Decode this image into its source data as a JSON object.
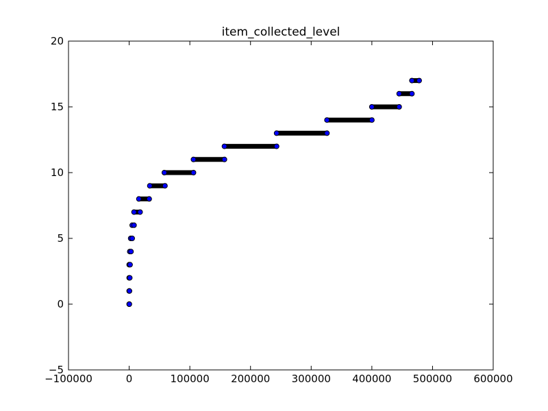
{
  "chart_data": {
    "type": "scatter",
    "title": "item_collected_level",
    "xlabel": "",
    "ylabel": "",
    "xlim": [
      -100000,
      600000
    ],
    "ylim": [
      -5,
      20
    ],
    "x_ticks": [
      -100000,
      0,
      100000,
      200000,
      300000,
      400000,
      500000,
      600000
    ],
    "x_tick_labels": [
      "−100000",
      "0",
      "100000",
      "200000",
      "300000",
      "400000",
      "500000",
      "600000"
    ],
    "y_ticks": [
      -5,
      0,
      5,
      10,
      15,
      20
    ],
    "y_tick_labels": [
      "−5",
      "0",
      "5",
      "10",
      "15",
      "20"
    ],
    "grid": false,
    "legend": "none",
    "marker_fill": "#0000ff",
    "marker_edge": "#000000",
    "level_ranges": [
      {
        "level": 0,
        "x_start": 0,
        "x_end": 300
      },
      {
        "level": 1,
        "x_start": 0,
        "x_end": 500
      },
      {
        "level": 2,
        "x_start": 0,
        "x_end": 1000
      },
      {
        "level": 3,
        "x_start": 0,
        "x_end": 1500
      },
      {
        "level": 4,
        "x_start": 1000,
        "x_end": 3000
      },
      {
        "level": 5,
        "x_start": 2500,
        "x_end": 5000
      },
      {
        "level": 6,
        "x_start": 5000,
        "x_end": 8000
      },
      {
        "level": 7,
        "x_start": 8000,
        "x_end": 18000
      },
      {
        "level": 8,
        "x_start": 16000,
        "x_end": 33000
      },
      {
        "level": 9,
        "x_start": 34000,
        "x_end": 59000
      },
      {
        "level": 10,
        "x_start": 58000,
        "x_end": 106000
      },
      {
        "level": 11,
        "x_start": 106000,
        "x_end": 157000
      },
      {
        "level": 12,
        "x_start": 157000,
        "x_end": 243000
      },
      {
        "level": 13,
        "x_start": 243000,
        "x_end": 326000
      },
      {
        "level": 14,
        "x_start": 326000,
        "x_end": 400000
      },
      {
        "level": 15,
        "x_start": 400000,
        "x_end": 445000
      },
      {
        "level": 16,
        "x_start": 445000,
        "x_end": 466000
      },
      {
        "level": 17,
        "x_start": 466000,
        "x_end": 478000
      }
    ]
  }
}
